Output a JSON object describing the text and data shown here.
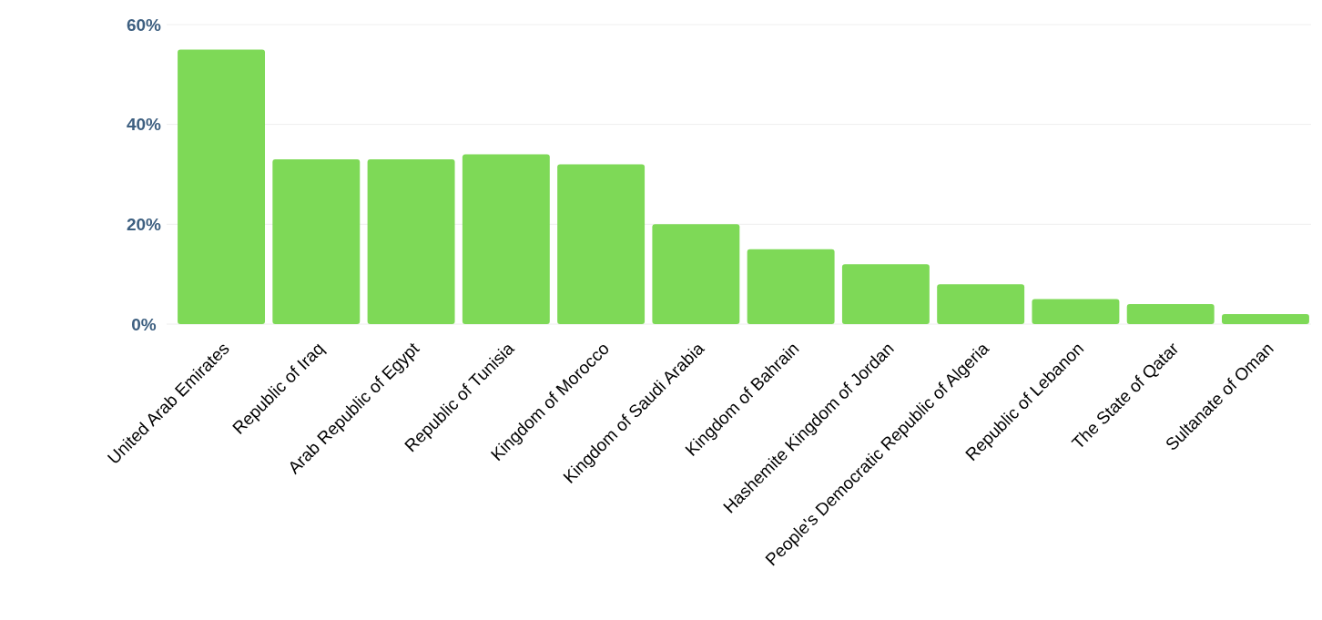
{
  "chart_data": {
    "type": "bar",
    "categories": [
      "United Arab Emirates",
      "Republic of Iraq",
      "Arab Republic of Egypt",
      "Republic of Tunisia",
      "Kingdom of Morocco",
      "Kingdom of Saudi Arabia",
      "Kingdom of Bahrain",
      "Hashemite Kingdom of Jordan",
      "People's Democratic Republic of Algeria",
      "Republic of Lebanon",
      "The State of Qatar",
      "Sultanate of Oman"
    ],
    "values": [
      55,
      33,
      33,
      34,
      32,
      20,
      15,
      12,
      8,
      5,
      4,
      2
    ],
    "color": "#7ed957",
    "ylim": [
      0,
      60
    ],
    "yticks": [
      {
        "value": 0,
        "label": "0%"
      },
      {
        "value": 20,
        "label": "20%"
      },
      {
        "value": 40,
        "label": "40%"
      },
      {
        "value": 60,
        "label": "60%"
      }
    ],
    "grid": "y"
  }
}
